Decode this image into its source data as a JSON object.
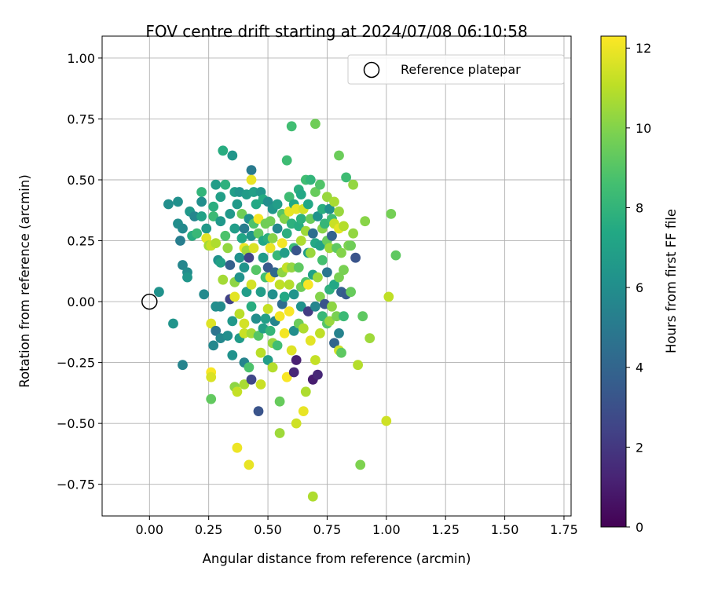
{
  "chart_data": {
    "type": "scatter",
    "title": "FOV centre drift starting at 2024/07/08 06:10:58",
    "xlabel": "Angular distance from reference (arcmin)",
    "ylabel": "Rotation from reference (arcmin)",
    "xlim": [
      -0.2,
      1.78
    ],
    "ylim": [
      -0.88,
      1.09
    ],
    "xticks": [
      "0.00",
      "0.25",
      "0.50",
      "0.75",
      "1.00",
      "1.25",
      "1.50",
      "1.75"
    ],
    "xtick_values": [
      0,
      0.25,
      0.5,
      0.75,
      1.0,
      1.25,
      1.5,
      1.75
    ],
    "yticks": [
      "−0.75",
      "−0.50",
      "−0.25",
      "0.00",
      "0.25",
      "0.50",
      "0.75",
      "1.00"
    ],
    "ytick_values": [
      -0.75,
      -0.5,
      -0.25,
      0,
      0.25,
      0.5,
      0.75,
      1.0
    ],
    "grid": true,
    "legend": {
      "placement": "top-right",
      "entries": [
        "Reference platepar"
      ]
    },
    "reference_point": {
      "x": 0.0,
      "y": 0.0
    },
    "colorbar": {
      "label": "Hours from first FF file",
      "colormap": "viridis",
      "range": [
        0,
        12.3
      ],
      "ticks": [
        "0",
        "2",
        "4",
        "6",
        "8",
        "10",
        "12"
      ],
      "tick_values": [
        0,
        2,
        4,
        6,
        8,
        10,
        12
      ]
    },
    "points": [
      {
        "x": 0.04,
        "y": 0.04,
        "h": 6.2
      },
      {
        "x": 0.1,
        "y": -0.09,
        "h": 6.3
      },
      {
        "x": 0.08,
        "y": 0.4,
        "h": 6.0
      },
      {
        "x": 0.12,
        "y": 0.41,
        "h": 6.1
      },
      {
        "x": 0.12,
        "y": 0.32,
        "h": 6.0
      },
      {
        "x": 0.14,
        "y": 0.3,
        "h": 5.8
      },
      {
        "x": 0.13,
        "y": 0.25,
        "h": 5.2
      },
      {
        "x": 0.14,
        "y": 0.15,
        "h": 5.6
      },
      {
        "x": 0.16,
        "y": 0.12,
        "h": 5.9
      },
      {
        "x": 0.16,
        "y": 0.1,
        "h": 6.4
      },
      {
        "x": 0.14,
        "y": -0.26,
        "h": 5.5
      },
      {
        "x": 0.17,
        "y": 0.37,
        "h": 6.5
      },
      {
        "x": 0.19,
        "y": 0.35,
        "h": 5.6
      },
      {
        "x": 0.18,
        "y": 0.27,
        "h": 7.6
      },
      {
        "x": 0.2,
        "y": 0.28,
        "h": 8.2
      },
      {
        "x": 0.22,
        "y": 0.45,
        "h": 8.0
      },
      {
        "x": 0.22,
        "y": 0.41,
        "h": 6.0
      },
      {
        "x": 0.22,
        "y": 0.35,
        "h": 7.0
      },
      {
        "x": 0.23,
        "y": 0.03,
        "h": 5.8
      },
      {
        "x": 0.24,
        "y": 0.3,
        "h": 6.6
      },
      {
        "x": 0.24,
        "y": 0.26,
        "h": 11.8
      },
      {
        "x": 0.25,
        "y": 0.23,
        "h": 10.6
      },
      {
        "x": 0.26,
        "y": 0.23,
        "h": 11.2
      },
      {
        "x": 0.26,
        "y": -0.09,
        "h": 11.7
      },
      {
        "x": 0.26,
        "y": -0.29,
        "h": 12.2
      },
      {
        "x": 0.26,
        "y": -0.31,
        "h": 11.6
      },
      {
        "x": 0.26,
        "y": -0.4,
        "h": 9.3
      },
      {
        "x": 0.27,
        "y": 0.39,
        "h": 7.7
      },
      {
        "x": 0.27,
        "y": 0.35,
        "h": 8.3
      },
      {
        "x": 0.28,
        "y": 0.48,
        "h": 6.8
      },
      {
        "x": 0.28,
        "y": 0.24,
        "h": 10.8
      },
      {
        "x": 0.29,
        "y": 0.17,
        "h": 6.2
      },
      {
        "x": 0.28,
        "y": -0.02,
        "h": 6.0
      },
      {
        "x": 0.28,
        "y": -0.12,
        "h": 4.7
      },
      {
        "x": 0.27,
        "y": -0.18,
        "h": 5.7
      },
      {
        "x": 0.3,
        "y": 0.43,
        "h": 6.9
      },
      {
        "x": 0.3,
        "y": 0.33,
        "h": 6.5
      },
      {
        "x": 0.3,
        "y": 0.16,
        "h": 7.0
      },
      {
        "x": 0.31,
        "y": 0.09,
        "h": 10.6
      },
      {
        "x": 0.3,
        "y": -0.02,
        "h": 5.9
      },
      {
        "x": 0.3,
        "y": -0.15,
        "h": 5.7
      },
      {
        "x": 0.31,
        "y": 0.62,
        "h": 7.6
      },
      {
        "x": 0.32,
        "y": 0.48,
        "h": 7.8
      },
      {
        "x": 0.32,
        "y": 0.27,
        "h": 8.8
      },
      {
        "x": 0.33,
        "y": 0.22,
        "h": 10.3
      },
      {
        "x": 0.33,
        "y": -0.14,
        "h": 6.0
      },
      {
        "x": 0.34,
        "y": 0.36,
        "h": 6.5
      },
      {
        "x": 0.34,
        "y": 0.15,
        "h": 3.8
      },
      {
        "x": 0.34,
        "y": 0.01,
        "h": 2.4
      },
      {
        "x": 0.35,
        "y": -0.08,
        "h": 6.5
      },
      {
        "x": 0.35,
        "y": -0.22,
        "h": 6.2
      },
      {
        "x": 0.35,
        "y": 0.6,
        "h": 6.4
      },
      {
        "x": 0.36,
        "y": 0.45,
        "h": 6.8
      },
      {
        "x": 0.36,
        "y": 0.3,
        "h": 6.8
      },
      {
        "x": 0.36,
        "y": 0.08,
        "h": 10.2
      },
      {
        "x": 0.36,
        "y": 0.02,
        "h": 11.8
      },
      {
        "x": 0.36,
        "y": -0.35,
        "h": 10.2
      },
      {
        "x": 0.37,
        "y": -0.37,
        "h": 11.2
      },
      {
        "x": 0.37,
        "y": -0.6,
        "h": 12.0
      },
      {
        "x": 0.37,
        "y": 0.4,
        "h": 6.6
      },
      {
        "x": 0.38,
        "y": 0.45,
        "h": 6.3
      },
      {
        "x": 0.38,
        "y": 0.18,
        "h": 6.2
      },
      {
        "x": 0.38,
        "y": 0.1,
        "h": 6.2
      },
      {
        "x": 0.38,
        "y": -0.05,
        "h": 11.0
      },
      {
        "x": 0.38,
        "y": -0.15,
        "h": 6.7
      },
      {
        "x": 0.39,
        "y": 0.26,
        "h": 7.3
      },
      {
        "x": 0.39,
        "y": 0.36,
        "h": 9.6
      },
      {
        "x": 0.4,
        "y": 0.3,
        "h": 5.1
      },
      {
        "x": 0.4,
        "y": 0.22,
        "h": 12.0
      },
      {
        "x": 0.4,
        "y": 0.14,
        "h": 6.3
      },
      {
        "x": 0.4,
        "y": -0.09,
        "h": 11.5
      },
      {
        "x": 0.4,
        "y": -0.13,
        "h": 11.3
      },
      {
        "x": 0.4,
        "y": -0.25,
        "h": 5.5
      },
      {
        "x": 0.4,
        "y": -0.34,
        "h": 10.7
      },
      {
        "x": 0.41,
        "y": 0.44,
        "h": 6.7
      },
      {
        "x": 0.41,
        "y": 0.21,
        "h": 10.5
      },
      {
        "x": 0.41,
        "y": 0.04,
        "h": 6.8
      },
      {
        "x": 0.42,
        "y": 0.34,
        "h": 6.2
      },
      {
        "x": 0.42,
        "y": 0.18,
        "h": 2.5
      },
      {
        "x": 0.42,
        "y": -0.27,
        "h": 8.8
      },
      {
        "x": 0.42,
        "y": -0.67,
        "h": 11.9
      },
      {
        "x": 0.43,
        "y": 0.54,
        "h": 5.0
      },
      {
        "x": 0.43,
        "y": 0.5,
        "h": 11.9
      },
      {
        "x": 0.43,
        "y": 0.27,
        "h": 6.3
      },
      {
        "x": 0.43,
        "y": 0.07,
        "h": 11.5
      },
      {
        "x": 0.43,
        "y": -0.02,
        "h": 7.6
      },
      {
        "x": 0.43,
        "y": -0.13,
        "h": 10.6
      },
      {
        "x": 0.43,
        "y": -0.32,
        "h": 2.6
      },
      {
        "x": 0.44,
        "y": 0.45,
        "h": 6.9
      },
      {
        "x": 0.44,
        "y": 0.32,
        "h": 8.8
      },
      {
        "x": 0.44,
        "y": 0.22,
        "h": 11.6
      },
      {
        "x": 0.45,
        "y": 0.4,
        "h": 7.4
      },
      {
        "x": 0.45,
        "y": 0.13,
        "h": 9.0
      },
      {
        "x": 0.45,
        "y": -0.07,
        "h": 6.0
      },
      {
        "x": 0.46,
        "y": 0.34,
        "h": 12.1
      },
      {
        "x": 0.46,
        "y": 0.28,
        "h": 9.3
      },
      {
        "x": 0.46,
        "y": -0.14,
        "h": 9.0
      },
      {
        "x": 0.46,
        "y": -0.45,
        "h": 3.2
      },
      {
        "x": 0.47,
        "y": 0.45,
        "h": 6.4
      },
      {
        "x": 0.47,
        "y": 0.04,
        "h": 6.8
      },
      {
        "x": 0.47,
        "y": -0.21,
        "h": 11.0
      },
      {
        "x": 0.47,
        "y": -0.34,
        "h": 11.3
      },
      {
        "x": 0.48,
        "y": 0.42,
        "h": 7.5
      },
      {
        "x": 0.48,
        "y": 0.25,
        "h": 7.3
      },
      {
        "x": 0.48,
        "y": 0.18,
        "h": 6.7
      },
      {
        "x": 0.48,
        "y": -0.11,
        "h": 6.9
      },
      {
        "x": 0.49,
        "y": 0.32,
        "h": 9.6
      },
      {
        "x": 0.49,
        "y": 0.1,
        "h": 8.6
      },
      {
        "x": 0.49,
        "y": -0.07,
        "h": 6.9
      },
      {
        "x": 0.5,
        "y": 0.41,
        "h": 6.0
      },
      {
        "x": 0.5,
        "y": 0.26,
        "h": 7.7
      },
      {
        "x": 0.5,
        "y": 0.14,
        "h": 3.4
      },
      {
        "x": 0.5,
        "y": -0.03,
        "h": 11.2
      },
      {
        "x": 0.5,
        "y": -0.24,
        "h": 6.8
      },
      {
        "x": 0.51,
        "y": 0.33,
        "h": 9.6
      },
      {
        "x": 0.51,
        "y": 0.22,
        "h": 11.9
      },
      {
        "x": 0.51,
        "y": 0.1,
        "h": 12.0
      },
      {
        "x": 0.51,
        "y": -0.12,
        "h": 8.1
      },
      {
        "x": 0.52,
        "y": 0.38,
        "h": 6.4
      },
      {
        "x": 0.52,
        "y": 0.26,
        "h": 10.1
      },
      {
        "x": 0.52,
        "y": 0.03,
        "h": 6.1
      },
      {
        "x": 0.52,
        "y": -0.17,
        "h": 10.4
      },
      {
        "x": 0.52,
        "y": -0.27,
        "h": 10.9
      },
      {
        "x": 0.53,
        "y": 0.12,
        "h": 4.2
      },
      {
        "x": 0.53,
        "y": -0.08,
        "h": 5.5
      },
      {
        "x": 0.54,
        "y": 0.4,
        "h": 6.8
      },
      {
        "x": 0.54,
        "y": 0.3,
        "h": 5.7
      },
      {
        "x": 0.54,
        "y": 0.19,
        "h": 8.2
      },
      {
        "x": 0.54,
        "y": -0.18,
        "h": 8.5
      },
      {
        "x": 0.55,
        "y": 0.07,
        "h": 11.1
      },
      {
        "x": 0.55,
        "y": -0.06,
        "h": 12.1
      },
      {
        "x": 0.55,
        "y": -0.41,
        "h": 9.4
      },
      {
        "x": 0.55,
        "y": -0.54,
        "h": 10.5
      },
      {
        "x": 0.56,
        "y": 0.36,
        "h": 9.0
      },
      {
        "x": 0.56,
        "y": 0.24,
        "h": 12.1
      },
      {
        "x": 0.56,
        "y": 0.12,
        "h": 10.2
      },
      {
        "x": 0.56,
        "y": -0.01,
        "h": 4.4
      },
      {
        "x": 0.57,
        "y": 0.34,
        "h": 10.0
      },
      {
        "x": 0.57,
        "y": 0.2,
        "h": 6.8
      },
      {
        "x": 0.57,
        "y": 0.02,
        "h": 7.4
      },
      {
        "x": 0.57,
        "y": -0.13,
        "h": 12.1
      },
      {
        "x": 0.58,
        "y": 0.58,
        "h": 8.4
      },
      {
        "x": 0.58,
        "y": 0.28,
        "h": 7.7
      },
      {
        "x": 0.58,
        "y": 0.14,
        "h": 11.2
      },
      {
        "x": 0.58,
        "y": -0.31,
        "h": 12.2
      },
      {
        "x": 0.59,
        "y": 0.43,
        "h": 8.4
      },
      {
        "x": 0.59,
        "y": 0.37,
        "h": 11.9
      },
      {
        "x": 0.59,
        "y": 0.07,
        "h": 10.9
      },
      {
        "x": 0.59,
        "y": -0.04,
        "h": 12.2
      },
      {
        "x": 0.6,
        "y": 0.72,
        "h": 8.5
      },
      {
        "x": 0.6,
        "y": 0.32,
        "h": 7.8
      },
      {
        "x": 0.6,
        "y": 0.14,
        "h": 10.3
      },
      {
        "x": 0.6,
        "y": -0.2,
        "h": 11.7
      },
      {
        "x": 0.61,
        "y": 0.4,
        "h": 7.4
      },
      {
        "x": 0.61,
        "y": 0.22,
        "h": 8.3
      },
      {
        "x": 0.61,
        "y": 0.03,
        "h": 6.3
      },
      {
        "x": 0.61,
        "y": -0.12,
        "h": 6.0
      },
      {
        "x": 0.61,
        "y": -0.29,
        "h": 1.4
      },
      {
        "x": 0.62,
        "y": 0.38,
        "h": 11.9
      },
      {
        "x": 0.62,
        "y": 0.21,
        "h": 3.3
      },
      {
        "x": 0.62,
        "y": -0.24,
        "h": 1.1
      },
      {
        "x": 0.62,
        "y": -0.5,
        "h": 11.4
      },
      {
        "x": 0.63,
        "y": 0.46,
        "h": 7.7
      },
      {
        "x": 0.63,
        "y": 0.31,
        "h": 7.6
      },
      {
        "x": 0.63,
        "y": 0.14,
        "h": 9.2
      },
      {
        "x": 0.63,
        "y": -0.09,
        "h": 9.5
      },
      {
        "x": 0.64,
        "y": 0.44,
        "h": 7.3
      },
      {
        "x": 0.64,
        "y": 0.34,
        "h": 7.8
      },
      {
        "x": 0.64,
        "y": 0.25,
        "h": 10.8
      },
      {
        "x": 0.64,
        "y": 0.06,
        "h": 9.6
      },
      {
        "x": 0.64,
        "y": -0.02,
        "h": 6.2
      },
      {
        "x": 0.65,
        "y": 0.38,
        "h": 11.5
      },
      {
        "x": 0.65,
        "y": -0.11,
        "h": 10.8
      },
      {
        "x": 0.65,
        "y": -0.45,
        "h": 11.9
      },
      {
        "x": 0.66,
        "y": 0.5,
        "h": 8.5
      },
      {
        "x": 0.66,
        "y": 0.29,
        "h": 10.5
      },
      {
        "x": 0.66,
        "y": 0.08,
        "h": 8.8
      },
      {
        "x": 0.66,
        "y": -0.37,
        "h": 10.8
      },
      {
        "x": 0.67,
        "y": 0.4,
        "h": 7.3
      },
      {
        "x": 0.67,
        "y": 0.2,
        "h": 6.8
      },
      {
        "x": 0.67,
        "y": 0.07,
        "h": 12.2
      },
      {
        "x": 0.67,
        "y": -0.04,
        "h": 2.2
      },
      {
        "x": 0.68,
        "y": 0.5,
        "h": 8.0
      },
      {
        "x": 0.68,
        "y": 0.34,
        "h": 9.5
      },
      {
        "x": 0.68,
        "y": 0.2,
        "h": 10.4
      },
      {
        "x": 0.68,
        "y": -0.16,
        "h": 11.8
      },
      {
        "x": 0.69,
        "y": 0.28,
        "h": 4.5
      },
      {
        "x": 0.69,
        "y": 0.11,
        "h": 7.0
      },
      {
        "x": 0.69,
        "y": -0.32,
        "h": 1.0
      },
      {
        "x": 0.69,
        "y": -0.8,
        "h": 10.8
      },
      {
        "x": 0.7,
        "y": 0.73,
        "h": 9.6
      },
      {
        "x": 0.7,
        "y": 0.45,
        "h": 9.4
      },
      {
        "x": 0.7,
        "y": 0.24,
        "h": 7.4
      },
      {
        "x": 0.7,
        "y": -0.02,
        "h": 5.6
      },
      {
        "x": 0.7,
        "y": -0.24,
        "h": 11.2
      },
      {
        "x": 0.71,
        "y": 0.35,
        "h": 6.2
      },
      {
        "x": 0.71,
        "y": 0.1,
        "h": 10.5
      },
      {
        "x": 0.71,
        "y": -0.3,
        "h": 1.4
      },
      {
        "x": 0.72,
        "y": 0.48,
        "h": 8.9
      },
      {
        "x": 0.72,
        "y": 0.23,
        "h": 7.0
      },
      {
        "x": 0.72,
        "y": 0.02,
        "h": 10.0
      },
      {
        "x": 0.72,
        "y": -0.13,
        "h": 11.1
      },
      {
        "x": 0.73,
        "y": 0.38,
        "h": 7.7
      },
      {
        "x": 0.73,
        "y": 0.3,
        "h": 10.1
      },
      {
        "x": 0.73,
        "y": 0.17,
        "h": 8.6
      },
      {
        "x": 0.73,
        "y": -0.06,
        "h": 8.2
      },
      {
        "x": 0.74,
        "y": 0.32,
        "h": 8.1
      },
      {
        "x": 0.74,
        "y": -0.01,
        "h": 3.2
      },
      {
        "x": 0.75,
        "y": 0.43,
        "h": 10.4
      },
      {
        "x": 0.75,
        "y": 0.25,
        "h": 9.4
      },
      {
        "x": 0.75,
        "y": 0.12,
        "h": 4.8
      },
      {
        "x": 0.75,
        "y": -0.09,
        "h": 9.0
      },
      {
        "x": 0.76,
        "y": 0.38,
        "h": 6.1
      },
      {
        "x": 0.76,
        "y": 0.22,
        "h": 10.5
      },
      {
        "x": 0.76,
        "y": 0.05,
        "h": 7.8
      },
      {
        "x": 0.76,
        "y": -0.08,
        "h": 10.4
      },
      {
        "x": 0.77,
        "y": 0.34,
        "h": 8.4
      },
      {
        "x": 0.77,
        "y": 0.27,
        "h": 3.9
      },
      {
        "x": 0.77,
        "y": -0.02,
        "h": 10.2
      },
      {
        "x": 0.78,
        "y": 0.41,
        "h": 10.7
      },
      {
        "x": 0.78,
        "y": 0.32,
        "h": 11.3
      },
      {
        "x": 0.78,
        "y": 0.07,
        "h": 7.3
      },
      {
        "x": 0.78,
        "y": -0.17,
        "h": 4.0
      },
      {
        "x": 0.79,
        "y": 0.22,
        "h": 9.2
      },
      {
        "x": 0.79,
        "y": -0.06,
        "h": 9.8
      },
      {
        "x": 0.8,
        "y": 0.6,
        "h": 9.5
      },
      {
        "x": 0.8,
        "y": 0.37,
        "h": 10.4
      },
      {
        "x": 0.8,
        "y": 0.3,
        "h": 11.8
      },
      {
        "x": 0.8,
        "y": 0.1,
        "h": 9.8
      },
      {
        "x": 0.8,
        "y": -0.13,
        "h": 5.4
      },
      {
        "x": 0.8,
        "y": -0.2,
        "h": 11.4
      },
      {
        "x": 0.81,
        "y": 0.2,
        "h": 10.0
      },
      {
        "x": 0.81,
        "y": 0.04,
        "h": 3.8
      },
      {
        "x": 0.81,
        "y": -0.21,
        "h": 9.2
      },
      {
        "x": 0.82,
        "y": 0.31,
        "h": 10.9
      },
      {
        "x": 0.82,
        "y": 0.13,
        "h": 9.8
      },
      {
        "x": 0.82,
        "y": -0.06,
        "h": 8.3
      },
      {
        "x": 0.83,
        "y": 0.51,
        "h": 8.4
      },
      {
        "x": 0.83,
        "y": 0.03,
        "h": 3.5
      },
      {
        "x": 0.84,
        "y": 0.23,
        "h": 9.9
      },
      {
        "x": 0.85,
        "y": 0.04,
        "h": 9.4
      },
      {
        "x": 0.85,
        "y": 0.23,
        "h": 9.6
      },
      {
        "x": 0.86,
        "y": 0.48,
        "h": 10.3
      },
      {
        "x": 0.86,
        "y": 0.28,
        "h": 10.3
      },
      {
        "x": 0.87,
        "y": 0.18,
        "h": 3.2
      },
      {
        "x": 0.88,
        "y": -0.26,
        "h": 10.9
      },
      {
        "x": 0.89,
        "y": -0.67,
        "h": 9.9
      },
      {
        "x": 0.9,
        "y": -0.06,
        "h": 9.2
      },
      {
        "x": 0.91,
        "y": 0.33,
        "h": 10.1
      },
      {
        "x": 0.93,
        "y": -0.15,
        "h": 10.5
      },
      {
        "x": 1.0,
        "y": -0.49,
        "h": 11.4
      },
      {
        "x": 1.01,
        "y": 0.02,
        "h": 11.1
      },
      {
        "x": 1.02,
        "y": 0.36,
        "h": 9.7
      },
      {
        "x": 1.04,
        "y": 0.19,
        "h": 9.2
      }
    ]
  }
}
